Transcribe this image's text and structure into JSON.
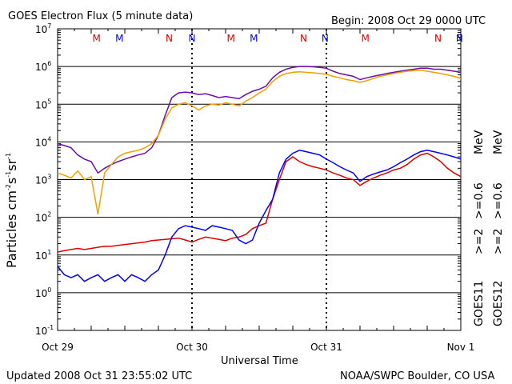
{
  "header": {
    "title": "GOES Electron Flux (5 minute data)",
    "begin": "Begin: 2008 Oct 29 0000 UTC"
  },
  "footer": {
    "updated": "Updated 2008 Oct 31 23:55:02 UTC",
    "source": "NOAA/SWPC Boulder, CO USA"
  },
  "colors": {
    "goes11_high": "#0000ff",
    "goes11_low": "#6a0dad",
    "goes12_high": "#e00000",
    "goes12_low": "#f0a000",
    "marker_m": "#e00000",
    "marker_n": "#0000ff"
  },
  "chart_data": {
    "type": "line",
    "xlabel": "Universal Time",
    "ylabel_base": "Particles cm",
    "ylabel_units": [
      "-2",
      "s",
      "-1",
      "sr",
      "-1"
    ],
    "y_scale": "log",
    "ylim": [
      0.1,
      10000000
    ],
    "xlim_days": [
      0,
      3
    ],
    "x_ticks": [
      "Oct 29",
      "Oct 30",
      "Oct 31",
      "Nov 1"
    ],
    "y_ticks": [
      {
        "base": "10",
        "exp": "7"
      },
      {
        "base": "10",
        "exp": "6"
      },
      {
        "base": "10",
        "exp": "5"
      },
      {
        "base": "10",
        "exp": "4"
      },
      {
        "base": "10",
        "exp": "3"
      },
      {
        "base": "10",
        "exp": "2"
      },
      {
        "base": "10",
        "exp": "1"
      },
      {
        "base": "10",
        "exp": "0"
      },
      {
        "base": "10",
        "exp": "-1"
      }
    ],
    "reference_line": {
      "value": 1000,
      "style": "dashed"
    },
    "markers": [
      {
        "label": "M",
        "color": "marker_m",
        "day": 0.29
      },
      {
        "label": "M",
        "color": "marker_m",
        "day": 1.29
      },
      {
        "label": "M",
        "color": "marker_m",
        "day": 2.29
      },
      {
        "label": "M",
        "color": "marker_n",
        "day": 0.46
      },
      {
        "label": "M",
        "color": "marker_n",
        "day": 1.46
      },
      {
        "label": "N",
        "color": "marker_m",
        "day": 0.83
      },
      {
        "label": "N",
        "color": "marker_m",
        "day": 1.83
      },
      {
        "label": "N",
        "color": "marker_m",
        "day": 2.83
      },
      {
        "label": "N",
        "color": "marker_n",
        "day": 1.0
      },
      {
        "label": "N",
        "color": "marker_n",
        "day": 1.99
      },
      {
        "label": "N",
        "color": "marker_n",
        "day": 2.99
      }
    ],
    "legend": {
      "goes11_label": "GOES11",
      "goes12_label": "GOES12",
      "goes11_high": ">=2",
      "goes11_low": ">=0.6",
      "goes12_high": ">=2",
      "goes12_low": ">=0.6",
      "unit": "MeV"
    },
    "series": [
      {
        "key": "goes11_low",
        "color": "goes11_low",
        "points": [
          [
            0.0,
            9000
          ],
          [
            0.05,
            8000
          ],
          [
            0.1,
            7000
          ],
          [
            0.15,
            4500
          ],
          [
            0.2,
            3500
          ],
          [
            0.25,
            3000
          ],
          [
            0.3,
            1500
          ],
          [
            0.35,
            2000
          ],
          [
            0.4,
            2500
          ],
          [
            0.45,
            3000
          ],
          [
            0.5,
            3500
          ],
          [
            0.55,
            4000
          ],
          [
            0.6,
            4500
          ],
          [
            0.65,
            5000
          ],
          [
            0.7,
            7000
          ],
          [
            0.75,
            15000
          ],
          [
            0.8,
            50000
          ],
          [
            0.85,
            150000
          ],
          [
            0.9,
            200000
          ],
          [
            0.95,
            210000
          ],
          [
            1.0,
            200000
          ],
          [
            1.05,
            180000
          ],
          [
            1.1,
            190000
          ],
          [
            1.15,
            170000
          ],
          [
            1.2,
            150000
          ],
          [
            1.25,
            160000
          ],
          [
            1.3,
            150000
          ],
          [
            1.35,
            140000
          ],
          [
            1.4,
            180000
          ],
          [
            1.45,
            220000
          ],
          [
            1.5,
            250000
          ],
          [
            1.55,
            300000
          ],
          [
            1.6,
            500000
          ],
          [
            1.65,
            700000
          ],
          [
            1.7,
            850000
          ],
          [
            1.75,
            950000
          ],
          [
            1.8,
            1000000
          ],
          [
            1.85,
            1000000
          ],
          [
            1.9,
            980000
          ],
          [
            1.95,
            950000
          ],
          [
            2.0,
            900000
          ],
          [
            2.05,
            750000
          ],
          [
            2.1,
            650000
          ],
          [
            2.15,
            600000
          ],
          [
            2.2,
            550000
          ],
          [
            2.25,
            450000
          ],
          [
            2.3,
            500000
          ],
          [
            2.35,
            550000
          ],
          [
            2.4,
            600000
          ],
          [
            2.45,
            650000
          ],
          [
            2.5,
            700000
          ],
          [
            2.55,
            750000
          ],
          [
            2.6,
            800000
          ],
          [
            2.65,
            850000
          ],
          [
            2.7,
            900000
          ],
          [
            2.75,
            900000
          ],
          [
            2.8,
            850000
          ],
          [
            2.85,
            850000
          ],
          [
            2.9,
            800000
          ],
          [
            2.95,
            750000
          ],
          [
            3.0,
            700000
          ]
        ]
      },
      {
        "key": "goes12_low",
        "color": "goes12_low",
        "points": [
          [
            0.0,
            1500
          ],
          [
            0.05,
            1300
          ],
          [
            0.1,
            1100
          ],
          [
            0.15,
            1700
          ],
          [
            0.2,
            1000
          ],
          [
            0.25,
            1200
          ],
          [
            0.3,
            120
          ],
          [
            0.35,
            1500
          ],
          [
            0.4,
            2500
          ],
          [
            0.45,
            4000
          ],
          [
            0.5,
            5000
          ],
          [
            0.55,
            5500
          ],
          [
            0.6,
            6000
          ],
          [
            0.65,
            7000
          ],
          [
            0.7,
            9000
          ],
          [
            0.75,
            15000
          ],
          [
            0.8,
            40000
          ],
          [
            0.85,
            80000
          ],
          [
            0.9,
            100000
          ],
          [
            0.95,
            110000
          ],
          [
            1.0,
            90000
          ],
          [
            1.05,
            70000
          ],
          [
            1.1,
            90000
          ],
          [
            1.15,
            100000
          ],
          [
            1.2,
            95000
          ],
          [
            1.25,
            110000
          ],
          [
            1.3,
            100000
          ],
          [
            1.35,
            90000
          ],
          [
            1.4,
            120000
          ],
          [
            1.45,
            150000
          ],
          [
            1.5,
            200000
          ],
          [
            1.55,
            250000
          ],
          [
            1.6,
            400000
          ],
          [
            1.65,
            550000
          ],
          [
            1.7,
            650000
          ],
          [
            1.75,
            700000
          ],
          [
            1.8,
            720000
          ],
          [
            1.85,
            700000
          ],
          [
            1.9,
            680000
          ],
          [
            1.95,
            650000
          ],
          [
            2.0,
            620000
          ],
          [
            2.05,
            550000
          ],
          [
            2.1,
            500000
          ],
          [
            2.15,
            450000
          ],
          [
            2.2,
            420000
          ],
          [
            2.25,
            380000
          ],
          [
            2.3,
            420000
          ],
          [
            2.35,
            480000
          ],
          [
            2.4,
            550000
          ],
          [
            2.45,
            600000
          ],
          [
            2.5,
            650000
          ],
          [
            2.55,
            700000
          ],
          [
            2.6,
            750000
          ],
          [
            2.65,
            780000
          ],
          [
            2.7,
            800000
          ],
          [
            2.75,
            750000
          ],
          [
            2.8,
            700000
          ],
          [
            2.85,
            650000
          ],
          [
            2.9,
            600000
          ],
          [
            2.95,
            550000
          ],
          [
            3.0,
            480000
          ]
        ]
      },
      {
        "key": "goes12_high",
        "color": "goes12_high",
        "points": [
          [
            0.0,
            12
          ],
          [
            0.05,
            13
          ],
          [
            0.1,
            14
          ],
          [
            0.15,
            15
          ],
          [
            0.2,
            14
          ],
          [
            0.25,
            15
          ],
          [
            0.3,
            16
          ],
          [
            0.35,
            17
          ],
          [
            0.4,
            17
          ],
          [
            0.45,
            18
          ],
          [
            0.5,
            19
          ],
          [
            0.55,
            20
          ],
          [
            0.6,
            21
          ],
          [
            0.65,
            22
          ],
          [
            0.7,
            24
          ],
          [
            0.75,
            25
          ],
          [
            0.8,
            26
          ],
          [
            0.85,
            27
          ],
          [
            0.9,
            28
          ],
          [
            0.95,
            25
          ],
          [
            1.0,
            22
          ],
          [
            1.05,
            26
          ],
          [
            1.1,
            30
          ],
          [
            1.15,
            28
          ],
          [
            1.2,
            26
          ],
          [
            1.25,
            24
          ],
          [
            1.3,
            28
          ],
          [
            1.35,
            30
          ],
          [
            1.4,
            35
          ],
          [
            1.45,
            50
          ],
          [
            1.5,
            60
          ],
          [
            1.55,
            70
          ],
          [
            1.6,
            300
          ],
          [
            1.65,
            1000
          ],
          [
            1.7,
            3000
          ],
          [
            1.75,
            4000
          ],
          [
            1.8,
            3000
          ],
          [
            1.85,
            2500
          ],
          [
            1.9,
            2200
          ],
          [
            1.95,
            2000
          ],
          [
            2.0,
            1800
          ],
          [
            2.05,
            1500
          ],
          [
            2.1,
            1300
          ],
          [
            2.15,
            1100
          ],
          [
            2.2,
            1000
          ],
          [
            2.25,
            700
          ],
          [
            2.3,
            900
          ],
          [
            2.35,
            1100
          ],
          [
            2.4,
            1300
          ],
          [
            2.45,
            1500
          ],
          [
            2.5,
            1800
          ],
          [
            2.55,
            2000
          ],
          [
            2.6,
            2500
          ],
          [
            2.65,
            3500
          ],
          [
            2.7,
            4500
          ],
          [
            2.75,
            5000
          ],
          [
            2.8,
            4000
          ],
          [
            2.85,
            3000
          ],
          [
            2.9,
            2000
          ],
          [
            2.95,
            1500
          ],
          [
            3.0,
            1200
          ]
        ]
      },
      {
        "key": "goes11_high",
        "color": "goes11_high",
        "points": [
          [
            0.0,
            5
          ],
          [
            0.05,
            3
          ],
          [
            0.1,
            2.5
          ],
          [
            0.15,
            3
          ],
          [
            0.2,
            2
          ],
          [
            0.25,
            2.5
          ],
          [
            0.3,
            3
          ],
          [
            0.35,
            2
          ],
          [
            0.4,
            2.5
          ],
          [
            0.45,
            3
          ],
          [
            0.5,
            2
          ],
          [
            0.55,
            3
          ],
          [
            0.6,
            2.5
          ],
          [
            0.65,
            2
          ],
          [
            0.7,
            3
          ],
          [
            0.75,
            4
          ],
          [
            0.8,
            10
          ],
          [
            0.85,
            30
          ],
          [
            0.9,
            50
          ],
          [
            0.95,
            60
          ],
          [
            1.0,
            55
          ],
          [
            1.05,
            50
          ],
          [
            1.1,
            45
          ],
          [
            1.15,
            60
          ],
          [
            1.2,
            55
          ],
          [
            1.25,
            50
          ],
          [
            1.3,
            45
          ],
          [
            1.35,
            25
          ],
          [
            1.4,
            20
          ],
          [
            1.45,
            25
          ],
          [
            1.5,
            70
          ],
          [
            1.55,
            150
          ],
          [
            1.6,
            300
          ],
          [
            1.65,
            1500
          ],
          [
            1.7,
            3500
          ],
          [
            1.75,
            5000
          ],
          [
            1.8,
            6000
          ],
          [
            1.85,
            5500
          ],
          [
            1.9,
            5000
          ],
          [
            1.95,
            4500
          ],
          [
            2.0,
            3500
          ],
          [
            2.05,
            2800
          ],
          [
            2.1,
            2200
          ],
          [
            2.15,
            1800
          ],
          [
            2.2,
            1500
          ],
          [
            2.25,
            900
          ],
          [
            2.3,
            1200
          ],
          [
            2.35,
            1400
          ],
          [
            2.4,
            1600
          ],
          [
            2.45,
            1800
          ],
          [
            2.5,
            2200
          ],
          [
            2.55,
            2800
          ],
          [
            2.6,
            3500
          ],
          [
            2.65,
            4500
          ],
          [
            2.7,
            5500
          ],
          [
            2.75,
            6000
          ],
          [
            2.8,
            5500
          ],
          [
            2.85,
            5000
          ],
          [
            2.9,
            4500
          ],
          [
            2.95,
            4000
          ],
          [
            3.0,
            3500
          ]
        ]
      }
    ]
  }
}
